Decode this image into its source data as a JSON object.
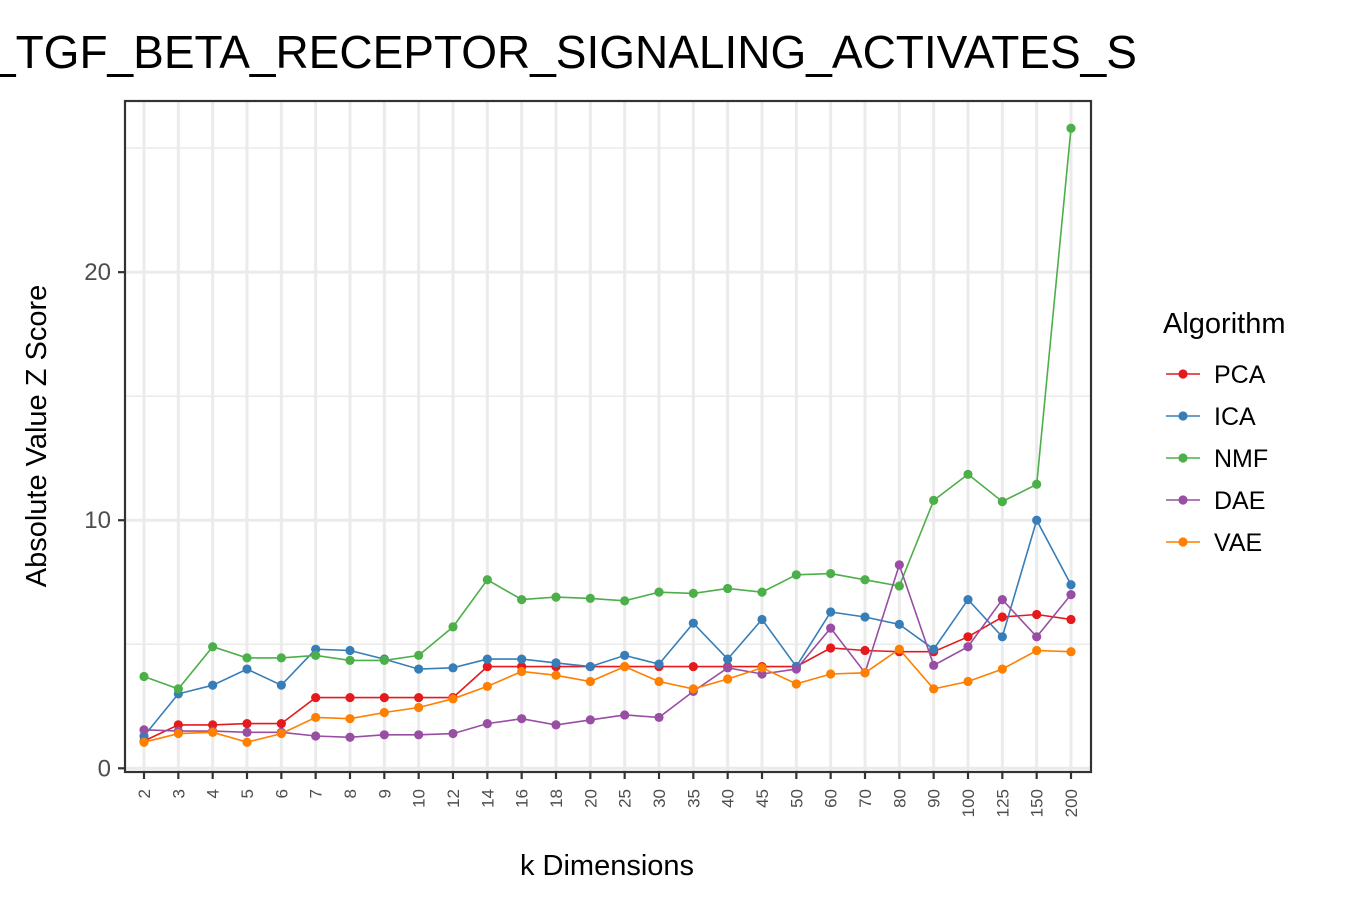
{
  "chart_data": {
    "type": "line",
    "title": "_TGF_BETA_RECEPTOR_SIGNALING_ACTIVATES_S",
    "xlabel": "k Dimensions",
    "ylabel": "Absolute Value Z Score",
    "categories": [
      "2",
      "3",
      "4",
      "5",
      "6",
      "7",
      "8",
      "9",
      "10",
      "12",
      "14",
      "16",
      "18",
      "20",
      "25",
      "30",
      "35",
      "40",
      "45",
      "50",
      "60",
      "70",
      "80",
      "90",
      "100",
      "125",
      "150",
      "200"
    ],
    "y_ticks": [
      0,
      10,
      20
    ],
    "ylim": [
      -0.15,
      26.9
    ],
    "grid": true,
    "legend": {
      "title": "Algorithm",
      "position": "right"
    },
    "series": [
      {
        "name": "PCA",
        "color": "#e41a1c",
        "values": [
          1.1,
          1.75,
          1.75,
          1.8,
          1.8,
          2.85,
          2.85,
          2.85,
          2.85,
          2.85,
          4.1,
          4.1,
          4.1,
          4.1,
          4.1,
          4.1,
          4.1,
          4.1,
          4.1,
          4.1,
          4.85,
          4.75,
          4.7,
          4.7,
          5.3,
          6.1,
          6.2,
          6.0
        ]
      },
      {
        "name": "ICA",
        "color": "#377eb8",
        "values": [
          1.3,
          3.0,
          3.35,
          4.0,
          3.35,
          4.8,
          4.75,
          4.4,
          4.0,
          4.05,
          4.4,
          4.4,
          4.25,
          4.1,
          4.55,
          4.2,
          5.85,
          4.4,
          6.0,
          4.1,
          6.3,
          6.1,
          5.8,
          4.8,
          6.8,
          5.3,
          10.0,
          7.4
        ]
      },
      {
        "name": "NMF",
        "color": "#4daf4a",
        "values": [
          3.7,
          3.2,
          4.9,
          4.45,
          4.45,
          4.55,
          4.35,
          4.35,
          4.55,
          5.7,
          7.6,
          6.8,
          6.9,
          6.85,
          6.75,
          7.1,
          7.05,
          7.25,
          7.1,
          7.8,
          7.85,
          7.6,
          7.35,
          10.8,
          11.85,
          10.75,
          11.45,
          25.8
        ]
      },
      {
        "name": "DAE",
        "color": "#984ea3",
        "values": [
          1.55,
          1.5,
          1.5,
          1.45,
          1.45,
          1.3,
          1.25,
          1.35,
          1.35,
          1.4,
          1.8,
          2.0,
          1.75,
          1.95,
          2.15,
          2.05,
          3.1,
          4.05,
          3.8,
          4.0,
          5.65,
          3.85,
          8.2,
          4.15,
          4.9,
          6.8,
          5.3,
          7.0
        ]
      },
      {
        "name": "VAE",
        "color": "#ff7f00",
        "values": [
          1.05,
          1.4,
          1.45,
          1.05,
          1.4,
          2.05,
          2.0,
          2.25,
          2.45,
          2.8,
          3.3,
          3.9,
          3.75,
          3.5,
          4.1,
          3.5,
          3.2,
          3.6,
          4.05,
          3.4,
          3.8,
          3.85,
          4.8,
          3.2,
          3.5,
          4.0,
          4.75,
          4.7
        ]
      }
    ]
  }
}
